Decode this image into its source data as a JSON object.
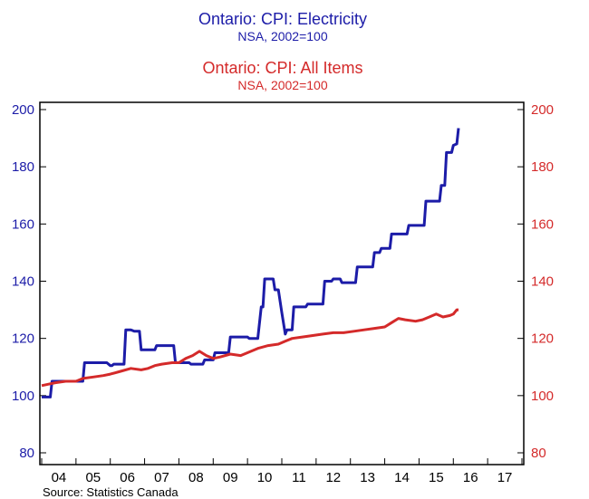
{
  "chart_data": {
    "type": "line",
    "titles": [
      {
        "title": "Ontario: CPI: Electricity",
        "subtitle": "NSA, 2002=100",
        "color": "#1c1ca8"
      },
      {
        "title": "Ontario: CPI: All Items",
        "subtitle": "NSA, 2002=100",
        "color": "#d42a2a"
      }
    ],
    "source": "Source:  Statistics Canada",
    "x_tick_labels": [
      "04",
      "05",
      "06",
      "07",
      "08",
      "09",
      "10",
      "11",
      "12",
      "13",
      "14",
      "15",
      "16",
      "17"
    ],
    "x_range": [
      2004,
      2018
    ],
    "left_axis": {
      "ylim": [
        80,
        200
      ],
      "ticks": [
        "80",
        "100",
        "120",
        "140",
        "160",
        "180",
        "200"
      ],
      "color": "#1c1ca8"
    },
    "right_axis": {
      "ylim": [
        80,
        200
      ],
      "ticks": [
        "80",
        "100",
        "120",
        "140",
        "160",
        "180",
        "200"
      ],
      "color": "#d42a2a"
    },
    "series": [
      {
        "name": "Ontario: CPI: Electricity",
        "color": "#1c1ca8",
        "axis": "left",
        "points": [
          [
            2004.0,
            99.5
          ],
          [
            2004.25,
            99.5
          ],
          [
            2004.3,
            105
          ],
          [
            2005.0,
            105
          ],
          [
            2005.2,
            105
          ],
          [
            2005.25,
            111.5
          ],
          [
            2005.9,
            111.5
          ],
          [
            2006.0,
            110.5
          ],
          [
            2006.05,
            110.5
          ],
          [
            2006.1,
            111
          ],
          [
            2006.4,
            111
          ],
          [
            2006.45,
            123
          ],
          [
            2006.6,
            123
          ],
          [
            2006.7,
            122.5
          ],
          [
            2006.85,
            122.5
          ],
          [
            2006.9,
            116
          ],
          [
            2007.3,
            116
          ],
          [
            2007.35,
            117.5
          ],
          [
            2007.85,
            117.5
          ],
          [
            2007.9,
            111.5
          ],
          [
            2008.3,
            111.5
          ],
          [
            2008.35,
            111
          ],
          [
            2008.7,
            111
          ],
          [
            2008.75,
            112.5
          ],
          [
            2009.0,
            112.5
          ],
          [
            2009.05,
            115
          ],
          [
            2009.45,
            115
          ],
          [
            2009.5,
            120.5
          ],
          [
            2010.0,
            120.5
          ],
          [
            2010.05,
            120
          ],
          [
            2010.3,
            120
          ],
          [
            2010.4,
            131
          ],
          [
            2010.45,
            131
          ],
          [
            2010.5,
            140.8
          ],
          [
            2010.75,
            140.8
          ],
          [
            2010.8,
            137
          ],
          [
            2010.9,
            137
          ],
          [
            2011.0,
            129
          ],
          [
            2011.1,
            121.5
          ],
          [
            2011.15,
            123
          ],
          [
            2011.3,
            123
          ],
          [
            2011.35,
            131
          ],
          [
            2011.7,
            131
          ],
          [
            2011.75,
            132
          ],
          [
            2012.2,
            132
          ],
          [
            2012.25,
            140
          ],
          [
            2012.45,
            140
          ],
          [
            2012.5,
            140.8
          ],
          [
            2012.7,
            140.8
          ],
          [
            2012.75,
            139.5
          ],
          [
            2013.15,
            139.5
          ],
          [
            2013.2,
            145
          ],
          [
            2013.65,
            145
          ],
          [
            2013.7,
            150
          ],
          [
            2013.85,
            150
          ],
          [
            2013.9,
            151.5
          ],
          [
            2014.15,
            151.5
          ],
          [
            2014.2,
            156.5
          ],
          [
            2014.65,
            156.5
          ],
          [
            2014.7,
            159.5
          ],
          [
            2015.15,
            159.5
          ],
          [
            2015.2,
            168
          ],
          [
            2015.6,
            168
          ],
          [
            2015.65,
            173.5
          ],
          [
            2015.75,
            173.5
          ],
          [
            2015.8,
            185
          ],
          [
            2015.95,
            185
          ],
          [
            2016.0,
            187.5
          ],
          [
            2016.1,
            188
          ],
          [
            2016.15,
            193.5
          ]
        ]
      },
      {
        "name": "Ontario: CPI: All Items",
        "color": "#d42a2a",
        "axis": "right",
        "points": [
          [
            2004.0,
            103.5
          ],
          [
            2004.2,
            104
          ],
          [
            2004.4,
            104.5
          ],
          [
            2004.7,
            105
          ],
          [
            2005.0,
            105
          ],
          [
            2005.2,
            106
          ],
          [
            2005.5,
            106.5
          ],
          [
            2005.8,
            107
          ],
          [
            2006.0,
            107.5
          ],
          [
            2006.3,
            108.5
          ],
          [
            2006.6,
            109.5
          ],
          [
            2006.9,
            109
          ],
          [
            2007.1,
            109.5
          ],
          [
            2007.3,
            110.5
          ],
          [
            2007.5,
            111
          ],
          [
            2007.8,
            111.5
          ],
          [
            2008.0,
            111.5
          ],
          [
            2008.2,
            113
          ],
          [
            2008.4,
            114
          ],
          [
            2008.6,
            115.5
          ],
          [
            2008.8,
            114
          ],
          [
            2009.0,
            113
          ],
          [
            2009.2,
            113.5
          ],
          [
            2009.5,
            114.5
          ],
          [
            2009.8,
            114
          ],
          [
            2010.0,
            115
          ],
          [
            2010.3,
            116.5
          ],
          [
            2010.6,
            117.5
          ],
          [
            2010.9,
            118
          ],
          [
            2011.1,
            119
          ],
          [
            2011.3,
            120
          ],
          [
            2011.6,
            120.5
          ],
          [
            2011.9,
            121
          ],
          [
            2012.2,
            121.5
          ],
          [
            2012.5,
            122
          ],
          [
            2012.8,
            122
          ],
          [
            2013.1,
            122.5
          ],
          [
            2013.4,
            123
          ],
          [
            2013.7,
            123.5
          ],
          [
            2014.0,
            124
          ],
          [
            2014.2,
            125.5
          ],
          [
            2014.4,
            127
          ],
          [
            2014.6,
            126.5
          ],
          [
            2014.9,
            126
          ],
          [
            2015.1,
            126.5
          ],
          [
            2015.3,
            127.5
          ],
          [
            2015.5,
            128.5
          ],
          [
            2015.7,
            127.5
          ],
          [
            2015.9,
            128
          ],
          [
            2016.0,
            128.5
          ],
          [
            2016.1,
            130
          ],
          [
            2016.15,
            130
          ]
        ]
      }
    ]
  }
}
